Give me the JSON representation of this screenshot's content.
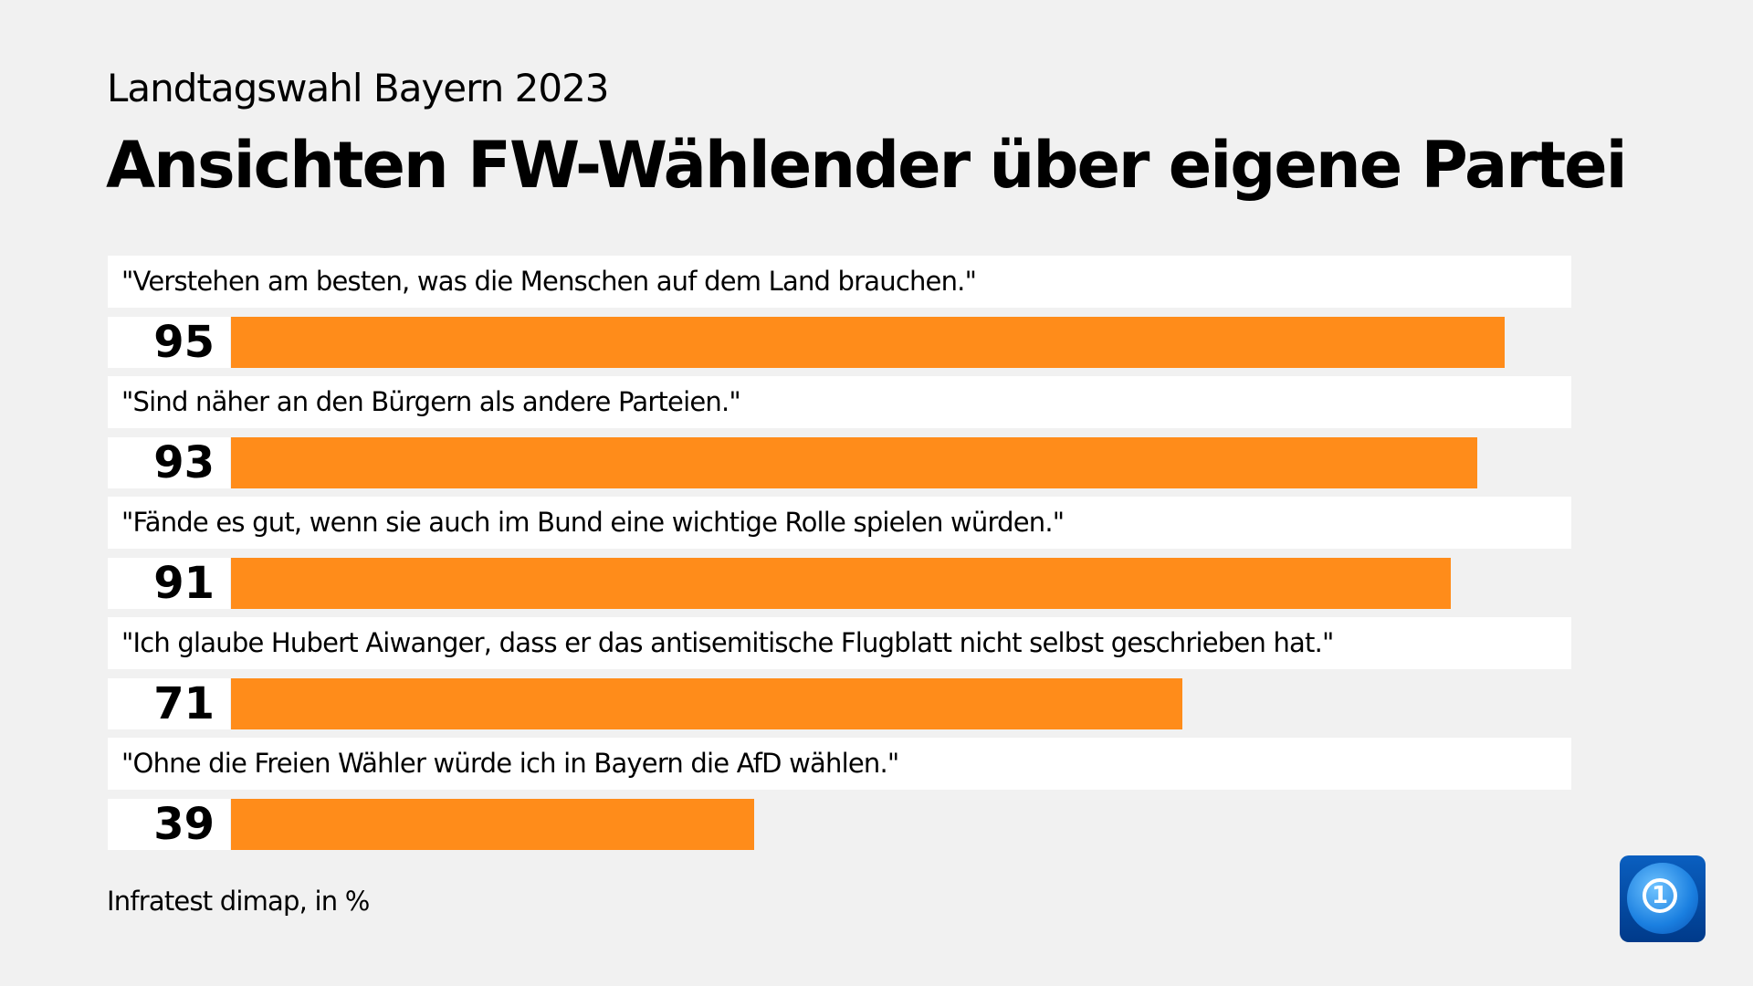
{
  "chart_data": {
    "type": "bar",
    "orientation": "horizontal",
    "supertitle": "Landtagswahl Bayern 2023",
    "title": "Ansichten FW-Wählender über eigene Partei",
    "categories": [
      "\"Verstehen am besten, was die Menschen auf dem Land brauchen.\"",
      "\"Sind näher an den Bürgern als andere Parteien.\"",
      "\"Fände es gut, wenn sie auch im Bund eine wichtige Rolle spielen würden.\"",
      "\"Ich glaube Hubert Aiwanger, dass er das antisemitische Flugblatt nicht selbst geschrieben hat.\"",
      "\"Ohne die Freien Wähler würde ich in Bayern die AfD wählen.\""
    ],
    "values": [
      95,
      93,
      91,
      71,
      39
    ],
    "xlim": [
      0,
      100
    ],
    "bar_color": "#ff8c1a",
    "source": "Infratest dimap, in %"
  }
}
